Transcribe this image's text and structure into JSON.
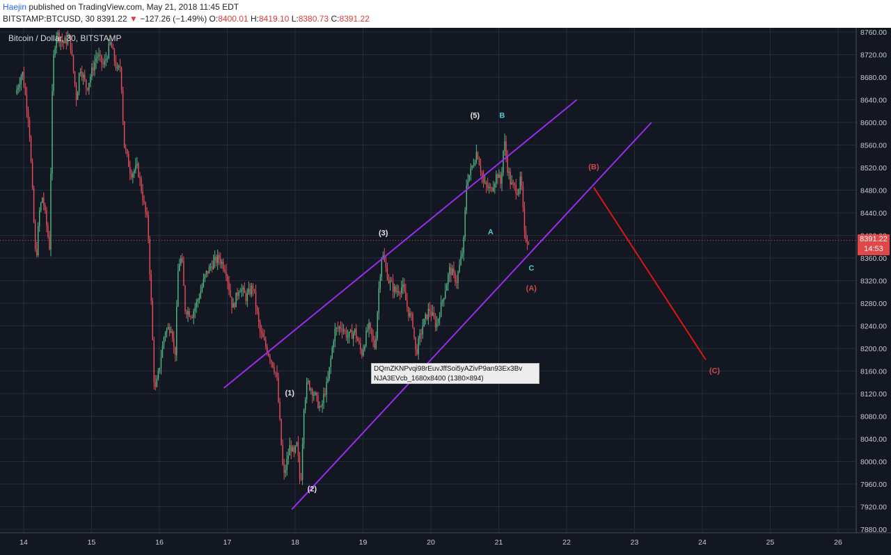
{
  "header": {
    "author": "Haejin",
    "published": "published on TradingView.com, May 21, 2018 11:45 EDT",
    "symbol": "BITSTAMP:BTCUSD, 30",
    "last": "8391.22",
    "change_arrow": "▼",
    "change": "−127.26 (−1.49%)",
    "o_label": "O:",
    "o": "8400.01",
    "h_label": "H:",
    "h": "8419.10",
    "l_label": "L:",
    "l": "8380.73",
    "c_label": "C:",
    "c": "8391.22"
  },
  "colors": {
    "background": "#131722",
    "grid": "#262b3a",
    "up_candle": "#53b987",
    "down_candle": "#eb4d5c",
    "channel": "#9a2cf0",
    "projection": "#e01515",
    "label_white": "#e6e6e6",
    "label_cyan": "#56c8d0",
    "label_red": "#d04848"
  },
  "chart_data": {
    "type": "candlestick",
    "title": "Bitcoin / Dollar, 30, BITSTAMP",
    "xlabel": "",
    "ylabel": "",
    "x_ticks": [
      "14",
      "15",
      "16",
      "17",
      "18",
      "19",
      "20",
      "21",
      "22",
      "23",
      "24",
      "25",
      "26"
    ],
    "y_ticks": [
      "8760.00",
      "8720.00",
      "8680.00",
      "8640.00",
      "8600.00",
      "8560.00",
      "8520.00",
      "8480.00",
      "8440.00",
      "8400.00",
      "8360.00",
      "8320.00",
      "8280.00",
      "8240.00",
      "8200.00",
      "8160.00",
      "8120.00",
      "8080.00",
      "8040.00",
      "8000.00",
      "7960.00",
      "7920.00",
      "7880.00"
    ],
    "ylim": [
      7858,
      8770
    ],
    "xlim": [
      13.85,
      26.3
    ],
    "grid": true,
    "last_price": "8391.22",
    "countdown": "14:53",
    "price_path": [
      [
        13.9,
        8650
      ],
      [
        14.0,
        8690
      ],
      [
        14.1,
        8600
      ],
      [
        14.2,
        8350
      ],
      [
        14.25,
        8440
      ],
      [
        14.3,
        8470
      ],
      [
        14.4,
        8380
      ],
      [
        14.45,
        8700
      ],
      [
        14.5,
        8760
      ],
      [
        14.6,
        8740
      ],
      [
        14.7,
        8750
      ],
      [
        14.8,
        8640
      ],
      [
        14.85,
        8700
      ],
      [
        14.95,
        8660
      ],
      [
        15.0,
        8680
      ],
      [
        15.1,
        8720
      ],
      [
        15.2,
        8700
      ],
      [
        15.3,
        8740
      ],
      [
        15.4,
        8690
      ],
      [
        15.45,
        8700
      ],
      [
        15.5,
        8560
      ],
      [
        15.6,
        8510
      ],
      [
        15.7,
        8520
      ],
      [
        15.8,
        8450
      ],
      [
        15.85,
        8420
      ],
      [
        15.9,
        8280
      ],
      [
        15.95,
        8120
      ],
      [
        16.0,
        8150
      ],
      [
        16.1,
        8230
      ],
      [
        16.2,
        8240
      ],
      [
        16.25,
        8180
      ],
      [
        16.3,
        8350
      ],
      [
        16.35,
        8360
      ],
      [
        16.4,
        8270
      ],
      [
        16.5,
        8260
      ],
      [
        16.6,
        8290
      ],
      [
        16.7,
        8330
      ],
      [
        16.8,
        8350
      ],
      [
        16.9,
        8360
      ],
      [
        17.0,
        8340
      ],
      [
        17.1,
        8270
      ],
      [
        17.2,
        8310
      ],
      [
        17.3,
        8290
      ],
      [
        17.4,
        8310
      ],
      [
        17.5,
        8230
      ],
      [
        17.6,
        8200
      ],
      [
        17.7,
        8170
      ],
      [
        17.75,
        8150
      ],
      [
        17.8,
        8060
      ],
      [
        17.85,
        7970
      ],
      [
        17.9,
        8000
      ],
      [
        17.95,
        8030
      ],
      [
        18.0,
        8010
      ],
      [
        18.05,
        8030
      ],
      [
        18.1,
        7950
      ],
      [
        18.15,
        8100
      ],
      [
        18.2,
        8140
      ],
      [
        18.3,
        8120
      ],
      [
        18.4,
        8090
      ],
      [
        18.45,
        8120
      ],
      [
        18.5,
        8140
      ],
      [
        18.6,
        8230
      ],
      [
        18.7,
        8240
      ],
      [
        18.8,
        8220
      ],
      [
        18.9,
        8230
      ],
      [
        19.0,
        8190
      ],
      [
        19.1,
        8240
      ],
      [
        19.2,
        8200
      ],
      [
        19.25,
        8300
      ],
      [
        19.3,
        8370
      ],
      [
        19.4,
        8320
      ],
      [
        19.5,
        8300
      ],
      [
        19.6,
        8310
      ],
      [
        19.7,
        8260
      ],
      [
        19.75,
        8250
      ],
      [
        19.8,
        8190
      ],
      [
        19.9,
        8240
      ],
      [
        20.0,
        8270
      ],
      [
        20.1,
        8240
      ],
      [
        20.2,
        8290
      ],
      [
        20.3,
        8340
      ],
      [
        20.4,
        8320
      ],
      [
        20.5,
        8380
      ],
      [
        20.55,
        8500
      ],
      [
        20.6,
        8510
      ],
      [
        20.7,
        8550
      ],
      [
        20.8,
        8490
      ],
      [
        20.9,
        8480
      ],
      [
        21.0,
        8510
      ],
      [
        21.05,
        8490
      ],
      [
        21.1,
        8570
      ],
      [
        21.15,
        8520
      ],
      [
        21.2,
        8490
      ],
      [
        21.3,
        8480
      ],
      [
        21.35,
        8500
      ],
      [
        21.4,
        8400
      ],
      [
        21.45,
        8391
      ]
    ],
    "channel_upper": [
      [
        16.95,
        8130
      ],
      [
        22.15,
        8640
      ]
    ],
    "channel_lower": [
      [
        17.95,
        7915
      ],
      [
        23.25,
        8600
      ]
    ],
    "projection_line": [
      [
        22.4,
        8485
      ],
      [
        24.05,
        8180
      ]
    ],
    "wave_labels": [
      {
        "text": "(1)",
        "x": 17.92,
        "y": 8122,
        "color": "white"
      },
      {
        "text": "(2)",
        "x": 18.25,
        "y": 7952,
        "color": "white"
      },
      {
        "text": "(3)",
        "x": 19.3,
        "y": 8405,
        "color": "white"
      },
      {
        "text": "(5)",
        "x": 20.65,
        "y": 8613,
        "color": "white"
      },
      {
        "text": "B",
        "x": 21.05,
        "y": 8613,
        "color": "cyan"
      },
      {
        "text": "A",
        "x": 20.88,
        "y": 8407,
        "color": "cyan"
      },
      {
        "text": "C",
        "x": 21.48,
        "y": 8343,
        "color": "cyan"
      },
      {
        "text": "(A)",
        "x": 21.48,
        "y": 8307,
        "color": "red"
      },
      {
        "text": "(B)",
        "x": 22.4,
        "y": 8522,
        "color": "red"
      },
      {
        "text": "(C)",
        "x": 24.18,
        "y": 8161,
        "color": "red"
      }
    ]
  },
  "tooltip": {
    "line1": "DQmZKNPvqi98rEuvJffSoi5yAZivP9an93Ex3Bv",
    "line2": "NJA3EVcb_1680x8400 (1380×894)"
  }
}
